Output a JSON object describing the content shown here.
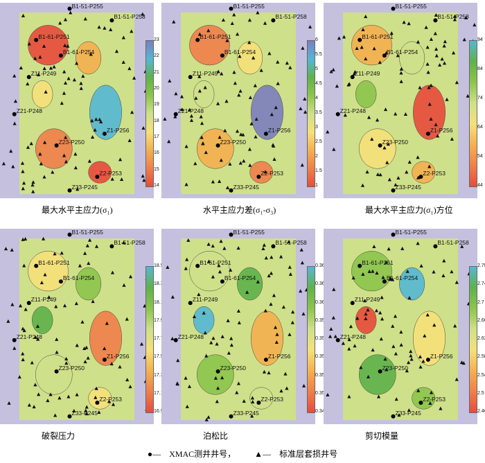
{
  "chart_data": [
    {
      "type": "heatmap",
      "title": "最大水平主应力(σ₁)",
      "colorbar": {
        "ticks": [
          "14",
          "15",
          "16",
          "17",
          "18",
          "19",
          "20",
          "21",
          "22",
          "23"
        ]
      },
      "palette": [
        "#e84b3c",
        "#f07f4a",
        "#f5b04f",
        "#f6e07a",
        "#cfe08a",
        "#8cc54c",
        "#5fb24a",
        "#55b7d5",
        "#7b7fbe"
      ]
    },
    {
      "type": "heatmap",
      "title": "水平主应力差(σ₁-σ₃)",
      "colorbar": {
        "ticks": [
          "1",
          "1.5",
          "2",
          "2.5",
          "3",
          "3.5",
          "4",
          "4.5",
          "5",
          "5.5",
          "6"
        ]
      },
      "palette": [
        "#e84b3c",
        "#f07f4a",
        "#f5b04f",
        "#f6e07a",
        "#cfe08a",
        "#8cc54c",
        "#5fb24a",
        "#55b7d5",
        "#7b7fbe"
      ]
    },
    {
      "type": "heatmap",
      "title": "最大水平主应力(σ₁)方位",
      "colorbar": {
        "ticks": [
          "44",
          "54",
          "64",
          "74",
          "84",
          "94"
        ]
      },
      "palette": [
        "#e84b3c",
        "#f07f4a",
        "#f5b04f",
        "#f6e07a",
        "#cfe08a",
        "#8cc54c",
        "#5fb24a",
        "#55b7d5"
      ]
    },
    {
      "type": "heatmap",
      "title": "破裂压力",
      "colorbar": {
        "ticks": [
          "16.9",
          "17.1",
          "17.3",
          "17.5",
          "17.7",
          "17.9",
          "18.1",
          "18.3",
          "18.5"
        ]
      },
      "palette": [
        "#e84b3c",
        "#f07f4a",
        "#f5b04f",
        "#f6e07a",
        "#cfe08a",
        "#8cc54c",
        "#5fb24a",
        "#55b7d5"
      ]
    },
    {
      "type": "heatmap",
      "title": "泊松比",
      "colorbar": {
        "ticks": [
          "0.348",
          "0.35",
          "0.352",
          "0.354",
          "0.356",
          "0.358",
          "0.36",
          "0.362",
          "0.364"
        ]
      },
      "palette": [
        "#e84b3c",
        "#f07f4a",
        "#f5b04f",
        "#f6e07a",
        "#cfe08a",
        "#8cc54c",
        "#5fb24a",
        "#55b7d5"
      ]
    },
    {
      "type": "heatmap",
      "title": "剪切模量",
      "colorbar": {
        "ticks": [
          "2.46",
          "2.5",
          "2.54",
          "2.58",
          "2.62",
          "2.66",
          "2.7",
          "2.74",
          "2.78"
        ]
      },
      "palette": [
        "#e84b3c",
        "#f07f4a",
        "#f5b04f",
        "#f6e07a",
        "#cfe08a",
        "#8cc54c",
        "#5fb24a",
        "#55b7d5"
      ]
    }
  ],
  "well_labels": [
    "B1-51-P255",
    "B1-51-P258",
    "B1-61-P251",
    "B1-61-P254",
    "Z11-P249",
    "Z21-P248",
    "Z1-P256",
    "Z23-P250",
    "Z2-P253",
    "Z33-P245"
  ],
  "legend": {
    "circle_label": "XMAC测井井号，",
    "triangle_label": "标准层套损井号",
    "circle_symbol": "●—",
    "triangle_symbol": "▲—"
  },
  "colors": {
    "frame": "#c4c0de"
  }
}
